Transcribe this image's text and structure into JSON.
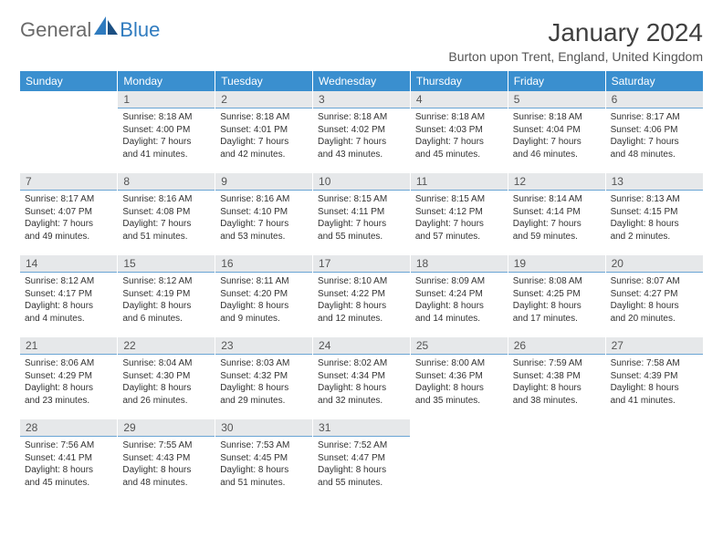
{
  "logo": {
    "general": "General",
    "blue": "Blue",
    "sail_color": "#2f7bbf"
  },
  "title": "January 2024",
  "location": "Burton upon Trent, England, United Kingdom",
  "colors": {
    "header_bg": "#3a8fcf",
    "header_text": "#ffffff",
    "daynum_bg": "#e6e8ea",
    "daynum_border": "#6aa5d4",
    "body_text": "#333333",
    "title_text": "#404040"
  },
  "weekdays": [
    "Sunday",
    "Monday",
    "Tuesday",
    "Wednesday",
    "Thursday",
    "Friday",
    "Saturday"
  ],
  "weeks": [
    [
      null,
      {
        "d": "1",
        "sr": "Sunrise: 8:18 AM",
        "ss": "Sunset: 4:00 PM",
        "dl1": "Daylight: 7 hours",
        "dl2": "and 41 minutes."
      },
      {
        "d": "2",
        "sr": "Sunrise: 8:18 AM",
        "ss": "Sunset: 4:01 PM",
        "dl1": "Daylight: 7 hours",
        "dl2": "and 42 minutes."
      },
      {
        "d": "3",
        "sr": "Sunrise: 8:18 AM",
        "ss": "Sunset: 4:02 PM",
        "dl1": "Daylight: 7 hours",
        "dl2": "and 43 minutes."
      },
      {
        "d": "4",
        "sr": "Sunrise: 8:18 AM",
        "ss": "Sunset: 4:03 PM",
        "dl1": "Daylight: 7 hours",
        "dl2": "and 45 minutes."
      },
      {
        "d": "5",
        "sr": "Sunrise: 8:18 AM",
        "ss": "Sunset: 4:04 PM",
        "dl1": "Daylight: 7 hours",
        "dl2": "and 46 minutes."
      },
      {
        "d": "6",
        "sr": "Sunrise: 8:17 AM",
        "ss": "Sunset: 4:06 PM",
        "dl1": "Daylight: 7 hours",
        "dl2": "and 48 minutes."
      }
    ],
    [
      {
        "d": "7",
        "sr": "Sunrise: 8:17 AM",
        "ss": "Sunset: 4:07 PM",
        "dl1": "Daylight: 7 hours",
        "dl2": "and 49 minutes."
      },
      {
        "d": "8",
        "sr": "Sunrise: 8:16 AM",
        "ss": "Sunset: 4:08 PM",
        "dl1": "Daylight: 7 hours",
        "dl2": "and 51 minutes."
      },
      {
        "d": "9",
        "sr": "Sunrise: 8:16 AM",
        "ss": "Sunset: 4:10 PM",
        "dl1": "Daylight: 7 hours",
        "dl2": "and 53 minutes."
      },
      {
        "d": "10",
        "sr": "Sunrise: 8:15 AM",
        "ss": "Sunset: 4:11 PM",
        "dl1": "Daylight: 7 hours",
        "dl2": "and 55 minutes."
      },
      {
        "d": "11",
        "sr": "Sunrise: 8:15 AM",
        "ss": "Sunset: 4:12 PM",
        "dl1": "Daylight: 7 hours",
        "dl2": "and 57 minutes."
      },
      {
        "d": "12",
        "sr": "Sunrise: 8:14 AM",
        "ss": "Sunset: 4:14 PM",
        "dl1": "Daylight: 7 hours",
        "dl2": "and 59 minutes."
      },
      {
        "d": "13",
        "sr": "Sunrise: 8:13 AM",
        "ss": "Sunset: 4:15 PM",
        "dl1": "Daylight: 8 hours",
        "dl2": "and 2 minutes."
      }
    ],
    [
      {
        "d": "14",
        "sr": "Sunrise: 8:12 AM",
        "ss": "Sunset: 4:17 PM",
        "dl1": "Daylight: 8 hours",
        "dl2": "and 4 minutes."
      },
      {
        "d": "15",
        "sr": "Sunrise: 8:12 AM",
        "ss": "Sunset: 4:19 PM",
        "dl1": "Daylight: 8 hours",
        "dl2": "and 6 minutes."
      },
      {
        "d": "16",
        "sr": "Sunrise: 8:11 AM",
        "ss": "Sunset: 4:20 PM",
        "dl1": "Daylight: 8 hours",
        "dl2": "and 9 minutes."
      },
      {
        "d": "17",
        "sr": "Sunrise: 8:10 AM",
        "ss": "Sunset: 4:22 PM",
        "dl1": "Daylight: 8 hours",
        "dl2": "and 12 minutes."
      },
      {
        "d": "18",
        "sr": "Sunrise: 8:09 AM",
        "ss": "Sunset: 4:24 PM",
        "dl1": "Daylight: 8 hours",
        "dl2": "and 14 minutes."
      },
      {
        "d": "19",
        "sr": "Sunrise: 8:08 AM",
        "ss": "Sunset: 4:25 PM",
        "dl1": "Daylight: 8 hours",
        "dl2": "and 17 minutes."
      },
      {
        "d": "20",
        "sr": "Sunrise: 8:07 AM",
        "ss": "Sunset: 4:27 PM",
        "dl1": "Daylight: 8 hours",
        "dl2": "and 20 minutes."
      }
    ],
    [
      {
        "d": "21",
        "sr": "Sunrise: 8:06 AM",
        "ss": "Sunset: 4:29 PM",
        "dl1": "Daylight: 8 hours",
        "dl2": "and 23 minutes."
      },
      {
        "d": "22",
        "sr": "Sunrise: 8:04 AM",
        "ss": "Sunset: 4:30 PM",
        "dl1": "Daylight: 8 hours",
        "dl2": "and 26 minutes."
      },
      {
        "d": "23",
        "sr": "Sunrise: 8:03 AM",
        "ss": "Sunset: 4:32 PM",
        "dl1": "Daylight: 8 hours",
        "dl2": "and 29 minutes."
      },
      {
        "d": "24",
        "sr": "Sunrise: 8:02 AM",
        "ss": "Sunset: 4:34 PM",
        "dl1": "Daylight: 8 hours",
        "dl2": "and 32 minutes."
      },
      {
        "d": "25",
        "sr": "Sunrise: 8:00 AM",
        "ss": "Sunset: 4:36 PM",
        "dl1": "Daylight: 8 hours",
        "dl2": "and 35 minutes."
      },
      {
        "d": "26",
        "sr": "Sunrise: 7:59 AM",
        "ss": "Sunset: 4:38 PM",
        "dl1": "Daylight: 8 hours",
        "dl2": "and 38 minutes."
      },
      {
        "d": "27",
        "sr": "Sunrise: 7:58 AM",
        "ss": "Sunset: 4:39 PM",
        "dl1": "Daylight: 8 hours",
        "dl2": "and 41 minutes."
      }
    ],
    [
      {
        "d": "28",
        "sr": "Sunrise: 7:56 AM",
        "ss": "Sunset: 4:41 PM",
        "dl1": "Daylight: 8 hours",
        "dl2": "and 45 minutes."
      },
      {
        "d": "29",
        "sr": "Sunrise: 7:55 AM",
        "ss": "Sunset: 4:43 PM",
        "dl1": "Daylight: 8 hours",
        "dl2": "and 48 minutes."
      },
      {
        "d": "30",
        "sr": "Sunrise: 7:53 AM",
        "ss": "Sunset: 4:45 PM",
        "dl1": "Daylight: 8 hours",
        "dl2": "and 51 minutes."
      },
      {
        "d": "31",
        "sr": "Sunrise: 7:52 AM",
        "ss": "Sunset: 4:47 PM",
        "dl1": "Daylight: 8 hours",
        "dl2": "and 55 minutes."
      },
      null,
      null,
      null
    ]
  ]
}
